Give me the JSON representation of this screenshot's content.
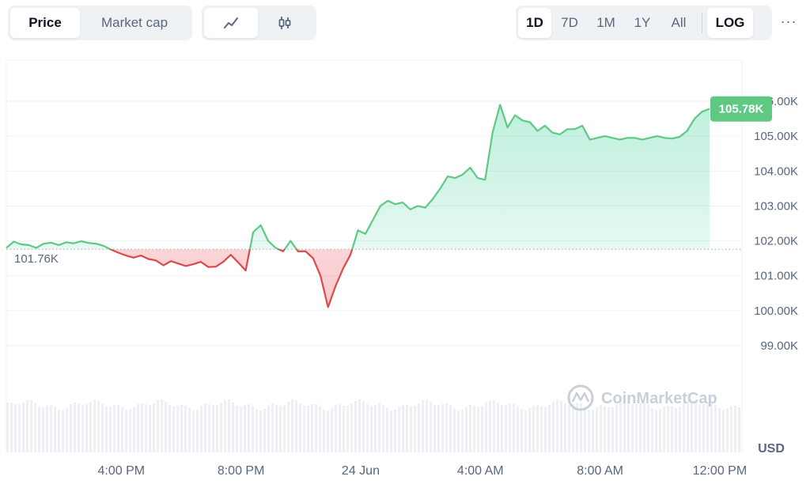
{
  "toolbar": {
    "type_tabs": [
      {
        "label": "Price",
        "active": true
      },
      {
        "label": "Market cap",
        "active": false
      }
    ],
    "chart_modes": [
      {
        "icon": "line-chart-icon",
        "active": true
      },
      {
        "icon": "candlestick-icon",
        "active": false
      }
    ],
    "ranges": [
      {
        "label": "1D",
        "active": true
      },
      {
        "label": "7D",
        "active": false
      },
      {
        "label": "1M",
        "active": false
      },
      {
        "label": "1Y",
        "active": false
      },
      {
        "label": "All",
        "active": false
      }
    ],
    "log_label": "LOG",
    "more_label": "···"
  },
  "watermark": "CoinMarketCap",
  "colors": {
    "up": "#16c784",
    "up_line": "#5fc983",
    "down": "#ea3943",
    "down_line": "#d94a4a",
    "badge": "#5fc983"
  },
  "chart_data": {
    "type": "area",
    "currency_label": "USD",
    "reference_price": 101760,
    "reference_label": "101.76K",
    "current_price": 105780,
    "current_label": "105.78K",
    "ylim": [
      98500,
      106000
    ],
    "yticks": [
      {
        "value": 99000,
        "label": "99.00K"
      },
      {
        "value": 100000,
        "label": "100.00K"
      },
      {
        "value": 101000,
        "label": "101.00K"
      },
      {
        "value": 102000,
        "label": "102.00K"
      },
      {
        "value": 103000,
        "label": "103.00K"
      },
      {
        "value": 104000,
        "label": "104.00K"
      },
      {
        "value": 105000,
        "label": "105.00K"
      },
      {
        "value": 106000,
        "label": "106.00K"
      }
    ],
    "xticks": [
      {
        "t": 4.0,
        "label": "4:00 PM"
      },
      {
        "t": 8.0,
        "label": "8:00 PM"
      },
      {
        "t": 12.0,
        "label": "24 Jun"
      },
      {
        "t": 16.0,
        "label": "4:00 AM"
      },
      {
        "t": 20.0,
        "label": "8:00 AM"
      },
      {
        "t": 24.0,
        "label": "12:00 PM"
      }
    ],
    "series": [
      {
        "points": [
          [
            0.0,
            101800
          ],
          [
            0.25,
            101980
          ],
          [
            0.5,
            101900
          ],
          [
            0.75,
            101880
          ],
          [
            1.0,
            101800
          ],
          [
            1.25,
            101920
          ],
          [
            1.5,
            101950
          ],
          [
            1.75,
            101880
          ],
          [
            2.0,
            101960
          ],
          [
            2.25,
            101930
          ],
          [
            2.5,
            101990
          ],
          [
            2.75,
            101940
          ],
          [
            3.0,
            101920
          ],
          [
            3.25,
            101860
          ],
          [
            3.5,
            101750
          ],
          [
            3.75,
            101660
          ],
          [
            4.0,
            101580
          ],
          [
            4.25,
            101520
          ],
          [
            4.5,
            101580
          ],
          [
            4.75,
            101480
          ],
          [
            5.0,
            101440
          ],
          [
            5.25,
            101300
          ],
          [
            5.5,
            101420
          ],
          [
            5.75,
            101350
          ],
          [
            6.0,
            101280
          ],
          [
            6.25,
            101330
          ],
          [
            6.5,
            101400
          ],
          [
            6.75,
            101250
          ],
          [
            7.0,
            101260
          ],
          [
            7.25,
            101400
          ],
          [
            7.5,
            101600
          ],
          [
            7.75,
            101380
          ],
          [
            8.0,
            101150
          ],
          [
            8.25,
            102250
          ],
          [
            8.5,
            102450
          ],
          [
            8.75,
            102000
          ],
          [
            9.0,
            101800
          ],
          [
            9.25,
            101700
          ],
          [
            9.5,
            102000
          ],
          [
            9.75,
            101700
          ],
          [
            10.0,
            101700
          ],
          [
            10.25,
            101500
          ],
          [
            10.5,
            101000
          ],
          [
            10.75,
            100100
          ],
          [
            11.0,
            100700
          ],
          [
            11.25,
            101200
          ],
          [
            11.5,
            101600
          ],
          [
            11.75,
            102300
          ],
          [
            12.0,
            102200
          ],
          [
            12.25,
            102600
          ],
          [
            12.5,
            103000
          ],
          [
            12.75,
            103150
          ],
          [
            13.0,
            103050
          ],
          [
            13.25,
            103100
          ],
          [
            13.5,
            102900
          ],
          [
            13.75,
            103000
          ],
          [
            14.0,
            102950
          ],
          [
            14.25,
            103200
          ],
          [
            14.5,
            103500
          ],
          [
            14.75,
            103850
          ],
          [
            15.0,
            103800
          ],
          [
            15.25,
            103900
          ],
          [
            15.5,
            104100
          ],
          [
            15.75,
            103800
          ],
          [
            16.0,
            103750
          ],
          [
            16.25,
            105100
          ],
          [
            16.5,
            105900
          ],
          [
            16.75,
            105250
          ],
          [
            17.0,
            105600
          ],
          [
            17.25,
            105450
          ],
          [
            17.5,
            105400
          ],
          [
            17.75,
            105150
          ],
          [
            18.0,
            105300
          ],
          [
            18.25,
            105100
          ],
          [
            18.5,
            105050
          ],
          [
            18.75,
            105200
          ],
          [
            19.0,
            105200
          ],
          [
            19.25,
            105300
          ],
          [
            19.5,
            104900
          ],
          [
            19.75,
            104950
          ],
          [
            20.0,
            105000
          ],
          [
            20.25,
            104950
          ],
          [
            20.5,
            104900
          ],
          [
            20.75,
            104950
          ],
          [
            21.0,
            104950
          ],
          [
            21.25,
            104900
          ],
          [
            21.5,
            104950
          ],
          [
            21.75,
            105000
          ],
          [
            22.0,
            104950
          ],
          [
            22.25,
            104930
          ],
          [
            22.5,
            104980
          ],
          [
            22.75,
            105150
          ],
          [
            23.0,
            105500
          ],
          [
            23.25,
            105700
          ],
          [
            23.5,
            105780
          ]
        ]
      }
    ],
    "volume_profile": "flat band along bottom",
    "grid": true
  }
}
